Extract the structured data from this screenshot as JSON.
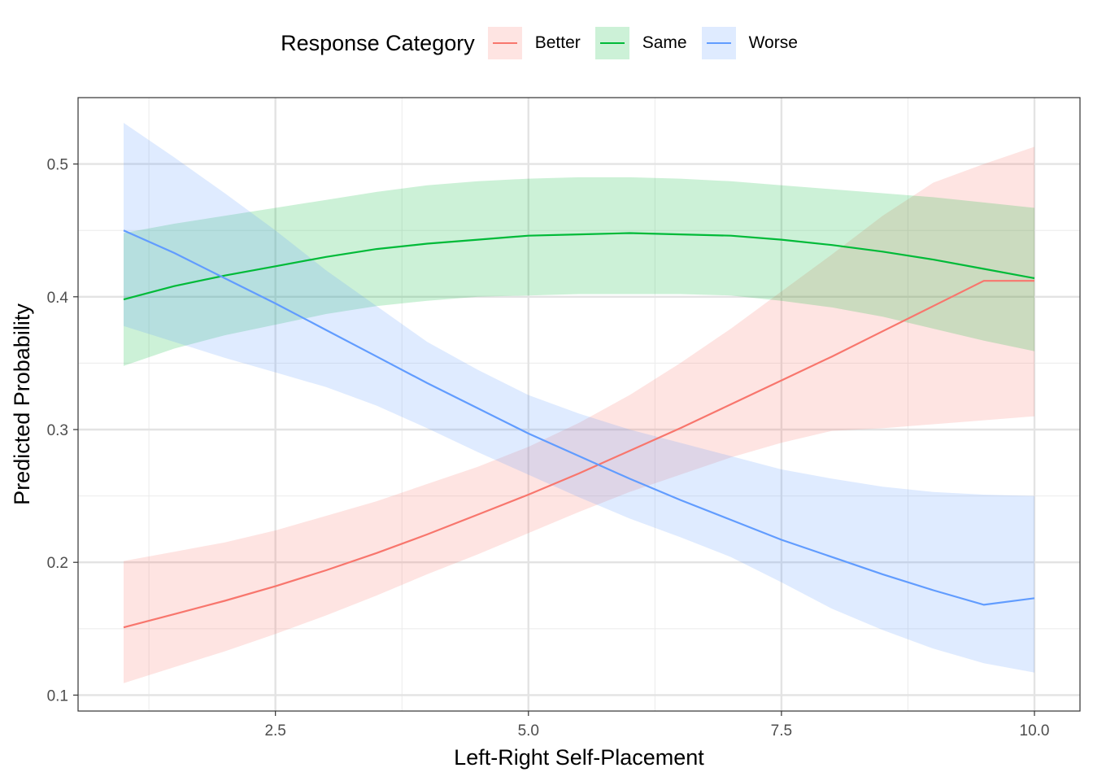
{
  "chart_data": {
    "type": "line",
    "xlabel": "Left-Right Self-Placement",
    "ylabel": "Predicted Probability",
    "xlim": [
      0.55,
      10.45
    ],
    "ylim": [
      0.088,
      0.55
    ],
    "x_ticks": [
      2.5,
      5.0,
      7.5,
      10.0
    ],
    "x_tick_labels": [
      "2.5",
      "5.0",
      "7.5",
      "10.0"
    ],
    "y_ticks": [
      0.1,
      0.2,
      0.3,
      0.4,
      0.5
    ],
    "y_tick_labels": [
      "0.1",
      "0.2",
      "0.3",
      "0.4",
      "0.5"
    ],
    "grid": true,
    "legend": {
      "title": "Response Category",
      "position": "top"
    },
    "x": [
      1,
      1.5,
      2,
      2.5,
      3,
      3.5,
      4,
      4.5,
      5,
      5.5,
      6,
      6.5,
      7,
      7.5,
      8,
      8.5,
      9,
      9.5,
      10
    ],
    "series": [
      {
        "name": "Better",
        "color": "#F8766D",
        "values": [
          0.151,
          0.161,
          0.171,
          0.182,
          0.194,
          0.207,
          0.221,
          0.236,
          0.251,
          0.267,
          0.284,
          0.301,
          0.319,
          0.337,
          0.355,
          0.374,
          0.393,
          0.412,
          0.412
        ],
        "lower": [
          0.109,
          0.121,
          0.133,
          0.146,
          0.16,
          0.175,
          0.191,
          0.206,
          0.222,
          0.238,
          0.253,
          0.266,
          0.279,
          0.29,
          0.299,
          0.301,
          0.304,
          0.307,
          0.31
        ],
        "upper": [
          0.201,
          0.208,
          0.215,
          0.224,
          0.235,
          0.246,
          0.259,
          0.272,
          0.287,
          0.305,
          0.326,
          0.35,
          0.376,
          0.404,
          0.432,
          0.461,
          0.486,
          0.5,
          0.513
        ]
      },
      {
        "name": "Same",
        "color": "#00BA38",
        "values": [
          0.398,
          0.408,
          0.416,
          0.423,
          0.43,
          0.436,
          0.44,
          0.443,
          0.446,
          0.447,
          0.448,
          0.447,
          0.446,
          0.443,
          0.439,
          0.434,
          0.428,
          0.421,
          0.414
        ],
        "lower": [
          0.348,
          0.361,
          0.371,
          0.379,
          0.387,
          0.393,
          0.397,
          0.4,
          0.401,
          0.402,
          0.402,
          0.402,
          0.401,
          0.397,
          0.392,
          0.385,
          0.376,
          0.367,
          0.359
        ],
        "upper": [
          0.448,
          0.455,
          0.461,
          0.467,
          0.473,
          0.479,
          0.484,
          0.487,
          0.489,
          0.49,
          0.49,
          0.489,
          0.487,
          0.484,
          0.481,
          0.478,
          0.475,
          0.471,
          0.467
        ]
      },
      {
        "name": "Worse",
        "color": "#619CFF",
        "values": [
          0.45,
          0.433,
          0.414,
          0.395,
          0.375,
          0.355,
          0.335,
          0.316,
          0.297,
          0.28,
          0.263,
          0.247,
          0.232,
          0.217,
          0.204,
          0.191,
          0.179,
          0.168,
          0.173
        ],
        "lower": [
          0.378,
          0.366,
          0.354,
          0.343,
          0.332,
          0.318,
          0.301,
          0.283,
          0.266,
          0.249,
          0.233,
          0.219,
          0.204,
          0.185,
          0.165,
          0.149,
          0.135,
          0.124,
          0.117
        ],
        "upper": [
          0.531,
          0.505,
          0.478,
          0.45,
          0.42,
          0.393,
          0.366,
          0.345,
          0.326,
          0.312,
          0.3,
          0.29,
          0.28,
          0.27,
          0.263,
          0.257,
          0.253,
          0.251,
          0.25
        ]
      }
    ]
  }
}
